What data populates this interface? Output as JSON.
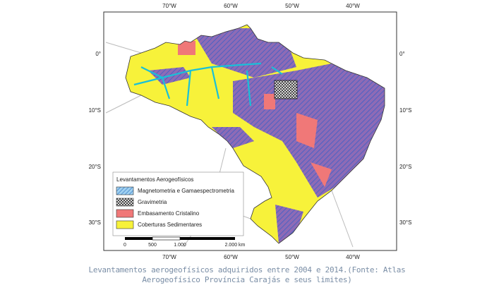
{
  "map": {
    "longitude_ticks": [
      "70°W",
      "60°W",
      "50°W",
      "40°W"
    ],
    "latitude_ticks": [
      "0°",
      "10°S",
      "20°S",
      "30°S"
    ],
    "legend": {
      "title": "Levantamentos Aerogeofísicos",
      "items": [
        "Magnetometria e Gamaespectrometria",
        "Gravimetria",
        "Embasamento Cristalino",
        "Coberturas Sedimentares"
      ]
    },
    "scale_bar": [
      "0",
      "500",
      "1.000",
      "2.000 km"
    ]
  },
  "caption": [
    "Levantamentos aerogeofísicos adquiridos entre 2004 e 2014.(Fonte: Atlas",
    "Aerogeofísico Província Carajás e seus limites)"
  ]
}
